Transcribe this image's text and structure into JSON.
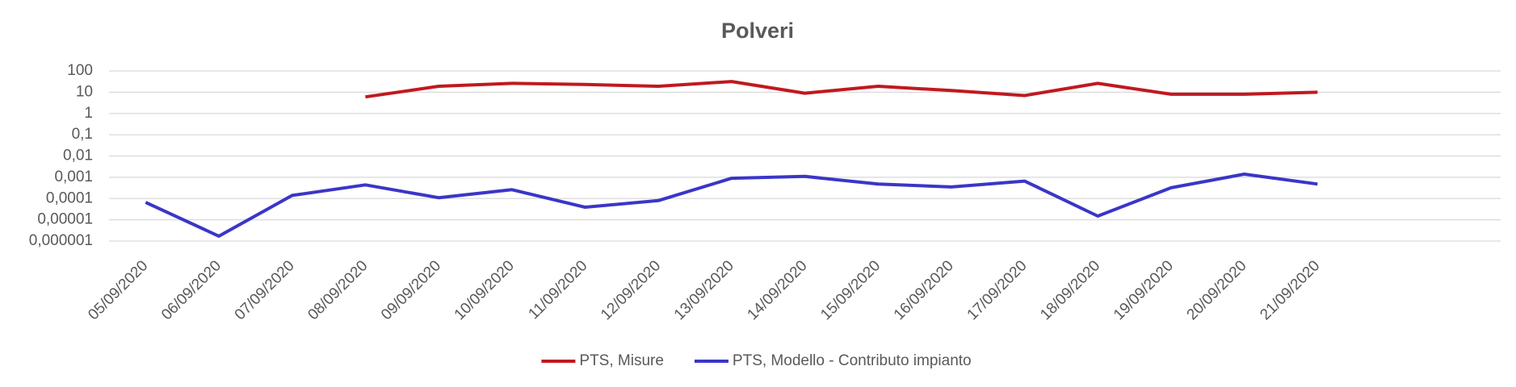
{
  "chart_data": {
    "type": "line",
    "title": "Polveri",
    "categories": [
      "05/09/2020",
      "06/09/2020",
      "07/09/2020",
      "08/09/2020",
      "09/09/2020",
      "10/09/2020",
      "11/09/2020",
      "12/09/2020",
      "13/09/2020",
      "14/09/2020",
      "15/09/2020",
      "16/09/2020",
      "17/09/2020",
      "18/09/2020",
      "19/09/2020",
      "20/09/2020",
      "21/09/2020",
      null,
      null
    ],
    "series": [
      {
        "name": "PTS, Misure",
        "color": "#c0191f",
        "values": [
          null,
          null,
          null,
          6,
          19,
          26,
          23,
          19,
          32,
          9,
          19,
          12,
          7,
          26,
          8,
          8,
          10,
          null,
          null
        ]
      },
      {
        "name": "PTS, Modello - Contributo impianto",
        "color": "#3a36c8",
        "values": [
          6.6e-05,
          1.7e-06,
          0.00014,
          0.00044,
          0.00011,
          0.00026,
          3.9e-05,
          8e-05,
          0.0009,
          0.0011,
          0.00048,
          0.00035,
          0.00066,
          1.5e-05,
          0.00032,
          0.0014,
          0.00048,
          null,
          null
        ]
      }
    ],
    "log_scale": true,
    "grid": true,
    "legend": "bottom",
    "ylim": [
      1e-06,
      100
    ],
    "yticks": [
      {
        "value": 1e-06,
        "label": "0,000001"
      },
      {
        "value": 1e-05,
        "label": "0,00001"
      },
      {
        "value": 0.0001,
        "label": "0,0001"
      },
      {
        "value": 0.001,
        "label": "0,001"
      },
      {
        "value": 0.01,
        "label": "0,01"
      },
      {
        "value": 0.1,
        "label": "0,1"
      },
      1,
      10,
      100
    ]
  }
}
